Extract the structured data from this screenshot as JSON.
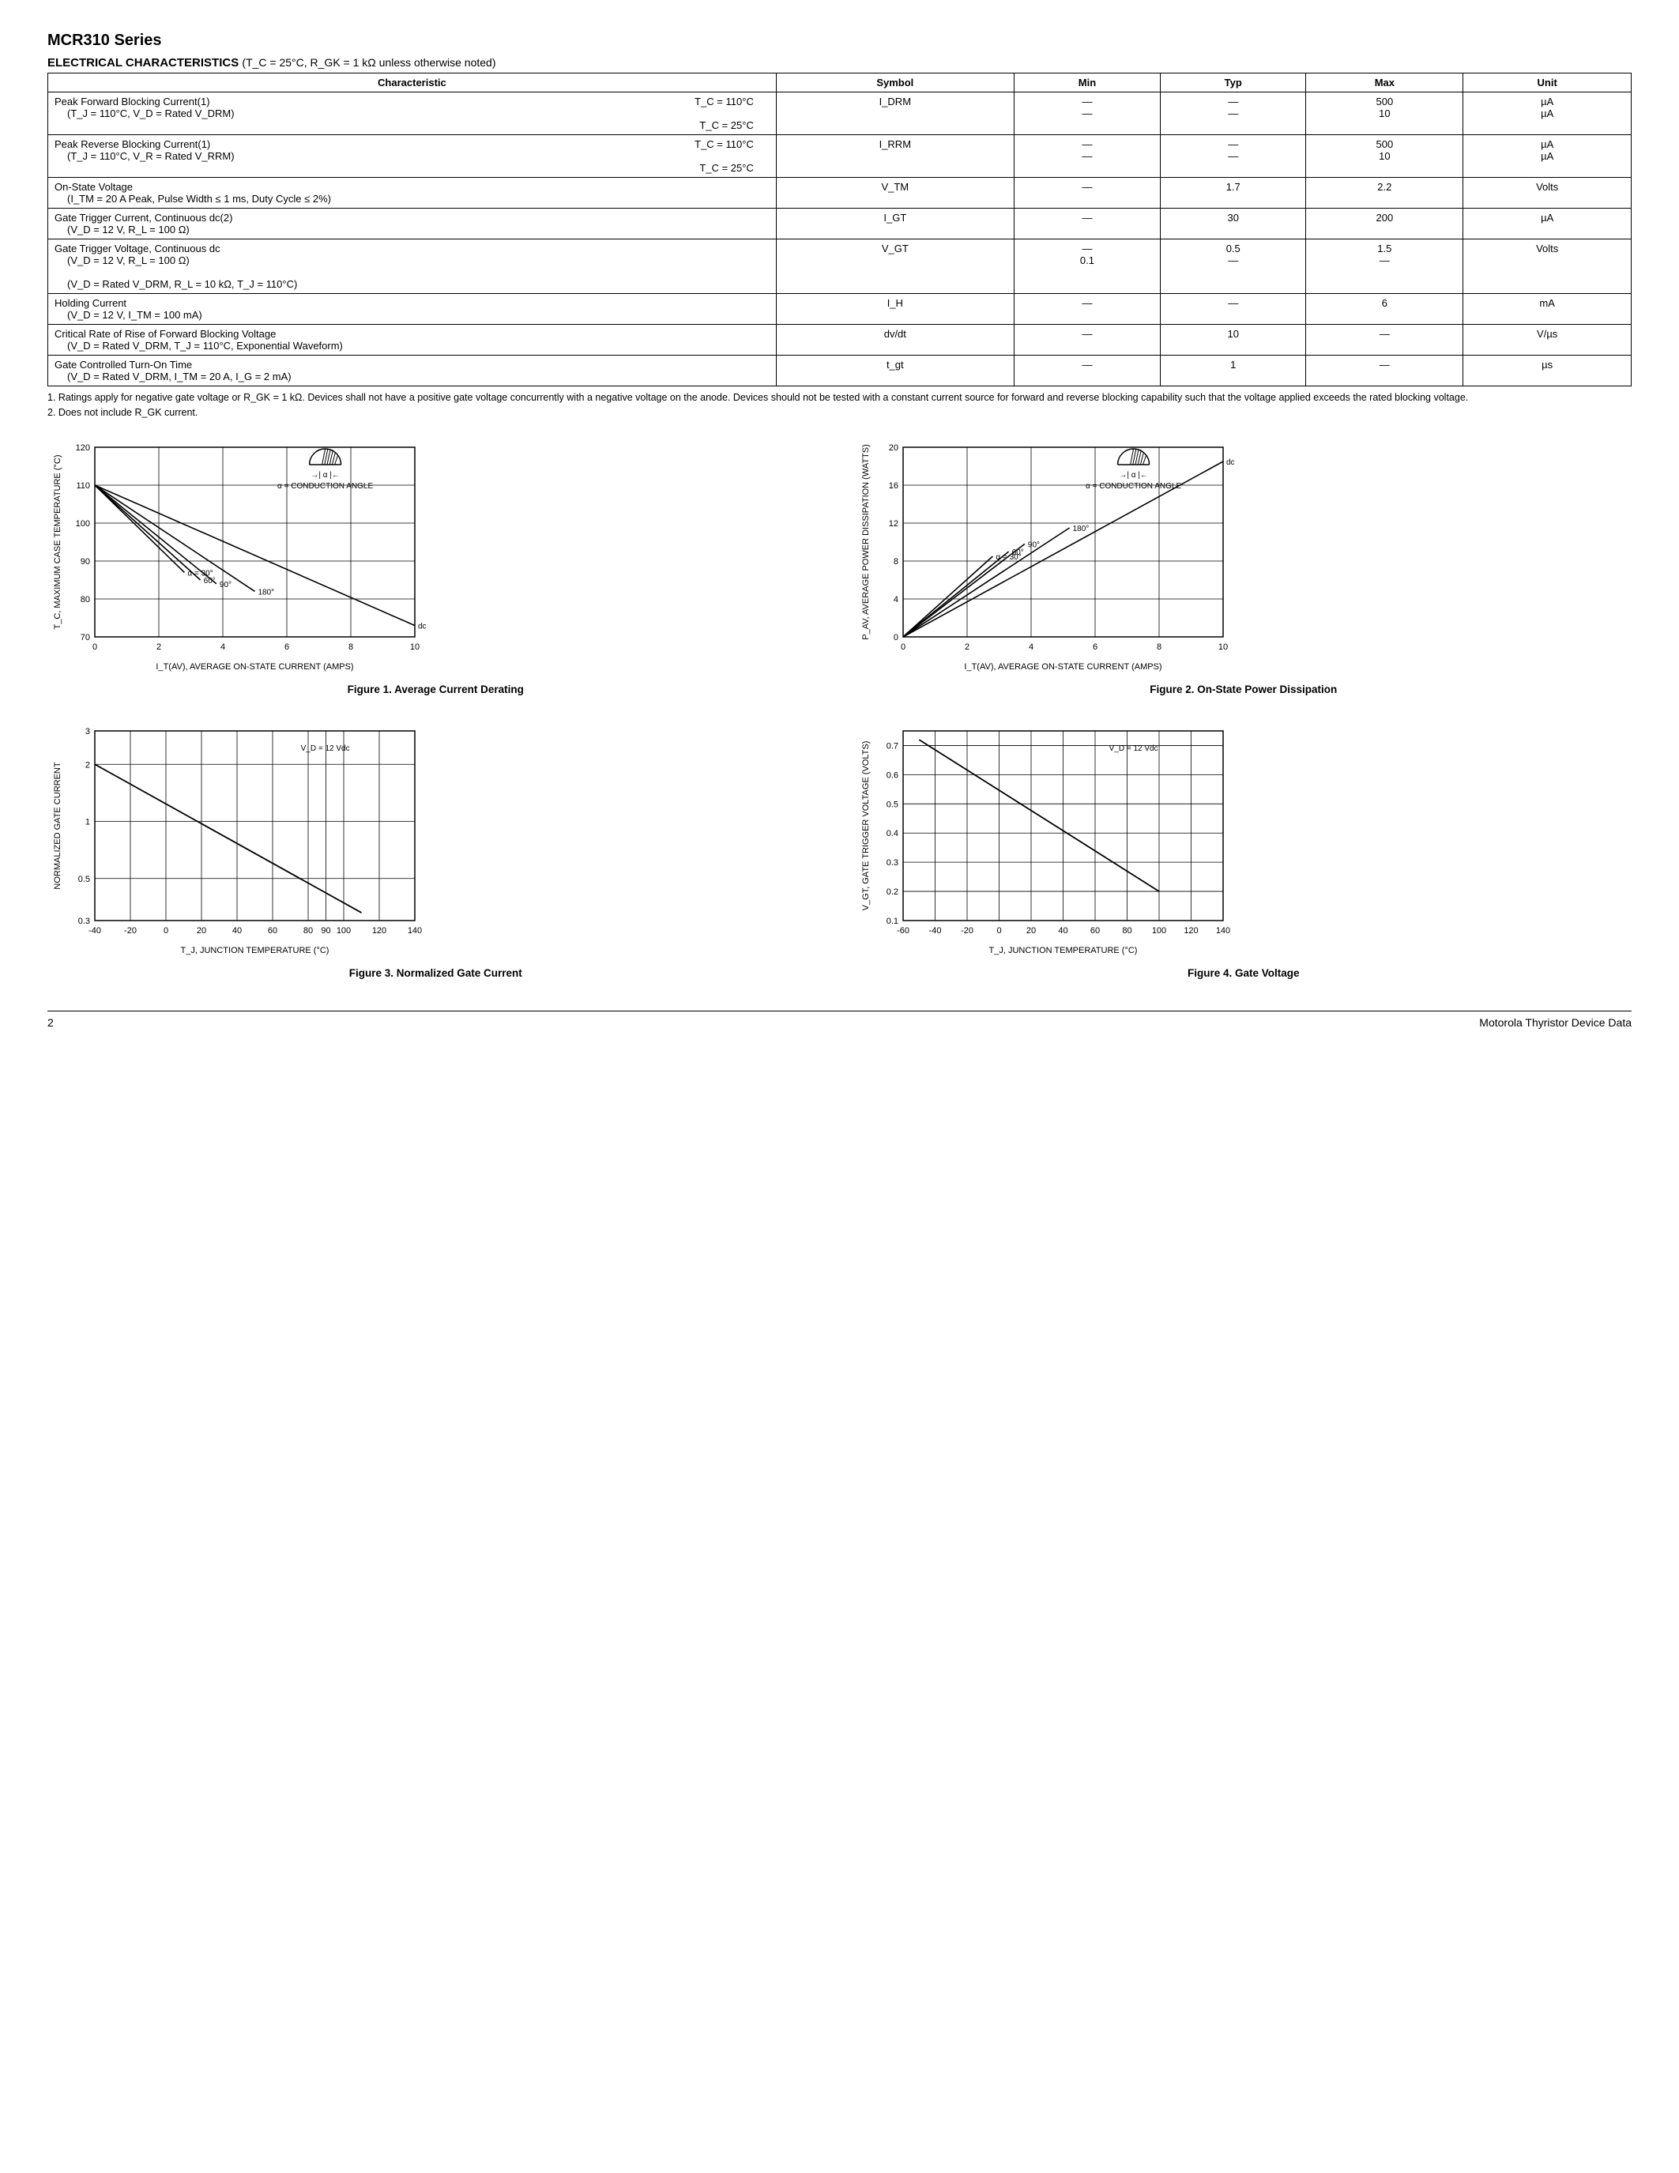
{
  "header": {
    "series_title": "MCR310 Series",
    "section": "ELECTRICAL CHARACTERISTICS",
    "conditions": "(T_C = 25°C, R_GK = 1 kΩ unless otherwise noted)"
  },
  "table": {
    "columns": [
      "Characteristic",
      "Symbol",
      "Min",
      "Typ",
      "Max",
      "Unit"
    ],
    "rows": [
      {
        "char_main": "Peak Forward Blocking Current(1)",
        "char_sub": "(T_J = 110°C, V_D = Rated V_DRM)",
        "char_cond1": "T_C = 110°C",
        "char_cond2": "T_C = 25°C",
        "symbol": "I_DRM",
        "min": [
          "—",
          "—"
        ],
        "typ": [
          "—",
          "—"
        ],
        "max": [
          "500",
          "10"
        ],
        "unit": [
          "µA",
          "µA"
        ]
      },
      {
        "char_main": "Peak Reverse Blocking Current(1)",
        "char_sub": "(T_J = 110°C, V_R = Rated V_RRM)",
        "char_cond1": "T_C = 110°C",
        "char_cond2": "T_C = 25°C",
        "symbol": "I_RRM",
        "min": [
          "—",
          "—"
        ],
        "typ": [
          "—",
          "—"
        ],
        "max": [
          "500",
          "10"
        ],
        "unit": [
          "µA",
          "µA"
        ]
      },
      {
        "char_main": "On-State Voltage",
        "char_sub": "(I_TM = 20 A Peak, Pulse Width ≤ 1 ms, Duty Cycle ≤ 2%)",
        "symbol": "V_TM",
        "min": [
          "—"
        ],
        "typ": [
          "1.7"
        ],
        "max": [
          "2.2"
        ],
        "unit": [
          "Volts"
        ]
      },
      {
        "char_main": "Gate Trigger Current, Continuous dc(2)",
        "char_sub": "(V_D = 12 V, R_L = 100 Ω)",
        "symbol": "I_GT",
        "min": [
          "—"
        ],
        "typ": [
          "30"
        ],
        "max": [
          "200"
        ],
        "unit": [
          "µA"
        ]
      },
      {
        "char_main": "Gate Trigger Voltage, Continuous dc",
        "char_sub": "(V_D = 12 V, R_L = 100 Ω)",
        "char_sub2": "(V_D = Rated V_DRM, R_L = 10 kΩ, T_J = 110°C)",
        "symbol": "V_GT",
        "min": [
          "—",
          "0.1"
        ],
        "typ": [
          "0.5",
          "—"
        ],
        "max": [
          "1.5",
          "—"
        ],
        "unit": [
          "Volts",
          ""
        ]
      },
      {
        "char_main": "Holding Current",
        "char_sub": "(V_D = 12 V, I_TM = 100 mA)",
        "symbol": "I_H",
        "min": [
          "—"
        ],
        "typ": [
          "—"
        ],
        "max": [
          "6"
        ],
        "unit": [
          "mA"
        ]
      },
      {
        "char_main": "Critical Rate of Rise of Forward Blocking Voltage",
        "char_sub": "(V_D = Rated V_DRM, T_J = 110°C, Exponential Waveform)",
        "symbol": "dv/dt",
        "min": [
          "—"
        ],
        "typ": [
          "10"
        ],
        "max": [
          "—"
        ],
        "unit": [
          "V/µs"
        ]
      },
      {
        "char_main": "Gate Controlled Turn-On Time",
        "char_sub": "(V_D = Rated V_DRM, I_TM = 20 A, I_G = 2 mA)",
        "symbol": "t_gt",
        "min": [
          "—"
        ],
        "typ": [
          "1"
        ],
        "max": [
          "—"
        ],
        "unit": [
          "µs"
        ]
      }
    ]
  },
  "notes": {
    "n1": "1. Ratings apply for negative gate voltage or R_GK = 1 kΩ. Devices shall not have a positive gate voltage concurrently with a negative voltage on the anode. Devices should not be tested with a constant current source for forward and reverse blocking capability such that the voltage applied exceeds the rated blocking voltage.",
    "n2": "2. Does not include R_GK current."
  },
  "charts": {
    "fig1": {
      "caption": "Figure 1. Average Current Derating",
      "xlabel": "I_T(AV), AVERAGE ON-STATE CURRENT (AMPS)",
      "ylabel": "T_C, MAXIMUM CASE TEMPERATURE (°C)",
      "xlim": [
        0,
        10
      ],
      "ylim": [
        70,
        120
      ],
      "xticks": [
        0,
        2,
        4,
        6,
        8,
        10
      ],
      "yticks": [
        70,
        80,
        90,
        100,
        110,
        120
      ],
      "grid_color": "#000000",
      "line_color": "#000000",
      "line_width": 1.6,
      "annotation": "α = CONDUCTION ANGLE",
      "series": [
        {
          "label": "α = 30°",
          "points": [
            [
              0,
              110
            ],
            [
              2.8,
              87
            ]
          ]
        },
        {
          "label": "60°",
          "points": [
            [
              0,
              110
            ],
            [
              3.3,
              85
            ]
          ]
        },
        {
          "label": "90°",
          "points": [
            [
              0,
              110
            ],
            [
              3.8,
              84
            ]
          ]
        },
        {
          "label": "180°",
          "points": [
            [
              0,
              110
            ],
            [
              5.0,
              82
            ]
          ]
        },
        {
          "label": "dc",
          "points": [
            [
              0,
              110
            ],
            [
              10,
              73
            ]
          ]
        }
      ]
    },
    "fig2": {
      "caption": "Figure 2. On-State Power Dissipation",
      "xlabel": "I_T(AV), AVERAGE ON-STATE CURRENT (AMPS)",
      "ylabel": "P_AV, AVERAGE POWER DISSIPATION (WATTS)",
      "xlim": [
        0,
        10
      ],
      "ylim": [
        0,
        20
      ],
      "xticks": [
        0,
        2,
        4,
        6,
        8,
        10
      ],
      "yticks": [
        0,
        4,
        8,
        12,
        16,
        20
      ],
      "grid_color": "#000000",
      "line_color": "#000000",
      "line_width": 1.6,
      "annotation": "α = CONDUCTION ANGLE",
      "series": [
        {
          "label": "α = 30°",
          "points": [
            [
              0,
              0
            ],
            [
              2.8,
              8.5
            ]
          ]
        },
        {
          "label": "60°",
          "points": [
            [
              0,
              0
            ],
            [
              3.3,
              9.0
            ]
          ]
        },
        {
          "label": "90°",
          "points": [
            [
              0,
              0
            ],
            [
              3.8,
              9.8
            ]
          ]
        },
        {
          "label": "180°",
          "points": [
            [
              0,
              0
            ],
            [
              5.2,
              11.5
            ]
          ]
        },
        {
          "label": "dc",
          "points": [
            [
              0,
              0
            ],
            [
              10,
              18.5
            ]
          ]
        }
      ]
    },
    "fig3": {
      "caption": "Figure 3. Normalized Gate Current",
      "xlabel": "T_J, JUNCTION TEMPERATURE (°C)",
      "ylabel": "NORMALIZED GATE CURRENT",
      "xlim": [
        -40,
        140
      ],
      "ylim_log": [
        0.3,
        3
      ],
      "xticks": [
        -40,
        -20,
        0,
        20,
        40,
        60,
        80,
        90,
        100,
        120,
        140
      ],
      "yticks": [
        0.3,
        0.5,
        1,
        2,
        3
      ],
      "grid_color": "#000000",
      "line_color": "#000000",
      "line_width": 1.8,
      "annotation": "V_D = 12 Vdc",
      "series": [
        {
          "label": "",
          "points": [
            [
              -40,
              2.0
            ],
            [
              110,
              0.33
            ]
          ]
        }
      ]
    },
    "fig4": {
      "caption": "Figure 4. Gate Voltage",
      "xlabel": "T_J, JUNCTION TEMPERATURE (°C)",
      "ylabel": "V_GT, GATE TRIGGER VOLTAGE (VOLTS)",
      "xlim": [
        -60,
        140
      ],
      "ylim": [
        0.1,
        0.75
      ],
      "xticks": [
        -60,
        -40,
        -20,
        0,
        20,
        40,
        60,
        80,
        100,
        120,
        140
      ],
      "yticks": [
        0.1,
        0.2,
        0.3,
        0.4,
        0.5,
        0.6,
        0.7
      ],
      "grid_color": "#000000",
      "line_color": "#000000",
      "line_width": 1.8,
      "annotation": "V_D = 12 Vdc",
      "series": [
        {
          "label": "",
          "points": [
            [
              -50,
              0.72
            ],
            [
              100,
              0.2
            ]
          ]
        }
      ]
    }
  },
  "footer": {
    "page": "2",
    "doc": "Motorola Thyristor Device Data"
  }
}
